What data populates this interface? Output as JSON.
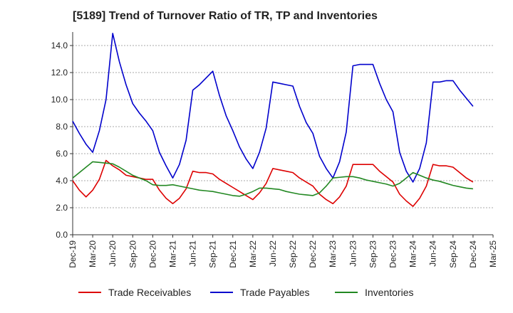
{
  "chart_data": {
    "type": "line",
    "title": "[5189]  Trend of Turnover Ratio of TR, TP and Inventories",
    "xlabel": "",
    "ylabel": "",
    "ylim": [
      0,
      15
    ],
    "yticks": [
      "0.0",
      "2.0",
      "4.0",
      "6.0",
      "8.0",
      "10.0",
      "12.0",
      "14.0"
    ],
    "ytick_values": [
      0,
      2,
      4,
      6,
      8,
      10,
      12,
      14
    ],
    "xtick_labels": [
      "Dec-19",
      "Mar-20",
      "Jun-20",
      "Sep-20",
      "Dec-20",
      "Mar-21",
      "Jun-21",
      "Sep-21",
      "Dec-21",
      "Mar-22",
      "Jun-22",
      "Sep-22",
      "Dec-22",
      "Mar-23",
      "Jun-23",
      "Sep-23",
      "Dec-23",
      "Mar-24",
      "Jun-24",
      "Sep-24",
      "Dec-24",
      "Mar-25"
    ],
    "x": [
      "Dec-19",
      "Jan-20",
      "Feb-20",
      "Mar-20",
      "Apr-20",
      "May-20",
      "Jun-20",
      "Jul-20",
      "Aug-20",
      "Sep-20",
      "Oct-20",
      "Nov-20",
      "Dec-20",
      "Jan-21",
      "Feb-21",
      "Mar-21",
      "Apr-21",
      "May-21",
      "Jun-21",
      "Jul-21",
      "Aug-21",
      "Sep-21",
      "Oct-21",
      "Nov-21",
      "Dec-21",
      "Jan-22",
      "Feb-22",
      "Mar-22",
      "Apr-22",
      "May-22",
      "Jun-22",
      "Jul-22",
      "Aug-22",
      "Sep-22",
      "Oct-22",
      "Nov-22",
      "Dec-22",
      "Jan-23",
      "Feb-23",
      "Mar-23",
      "Apr-23",
      "May-23",
      "Jun-23",
      "Jul-23",
      "Aug-23",
      "Sep-23",
      "Oct-23",
      "Nov-23",
      "Dec-23",
      "Jan-24",
      "Feb-24",
      "Mar-24",
      "Apr-24",
      "May-24",
      "Jun-24",
      "Jul-24",
      "Aug-24",
      "Sep-24",
      "Oct-24",
      "Nov-24",
      "Dec-24",
      "Jan-25",
      "Feb-25",
      "Mar-25"
    ],
    "series": [
      {
        "name": "Trade Receivables",
        "color": "#dd0000",
        "values": [
          4.0,
          3.3,
          2.8,
          3.3,
          4.1,
          5.5,
          5.1,
          4.8,
          4.4,
          4.3,
          4.2,
          4.1,
          4.1,
          3.3,
          2.7,
          2.3,
          2.7,
          3.4,
          4.7,
          4.6,
          4.6,
          4.5,
          4.1,
          3.8,
          3.5,
          3.2,
          2.9,
          2.6,
          3.1,
          3.8,
          4.9,
          4.8,
          4.7,
          4.6,
          4.2,
          3.9,
          3.6,
          3.0,
          2.6,
          2.3,
          2.8,
          3.6,
          5.2,
          5.2,
          5.2,
          5.2,
          4.7,
          4.3,
          3.9,
          3.0,
          2.5,
          2.1,
          2.7,
          3.6,
          5.2,
          5.1,
          5.1,
          5.0,
          4.6,
          4.2,
          3.9,
          null,
          null,
          null
        ]
      },
      {
        "name": "Trade Payables",
        "color": "#0000cc",
        "values": [
          8.4,
          7.5,
          6.7,
          6.1,
          7.7,
          10.0,
          14.9,
          12.8,
          11.1,
          9.7,
          9.0,
          8.4,
          7.7,
          6.1,
          5.1,
          4.2,
          5.2,
          7.0,
          10.7,
          11.1,
          11.6,
          12.1,
          10.3,
          8.8,
          7.7,
          6.5,
          5.6,
          4.9,
          6.1,
          7.9,
          11.3,
          11.2,
          11.1,
          11.0,
          9.5,
          8.3,
          7.5,
          5.8,
          4.9,
          4.2,
          5.4,
          7.6,
          12.5,
          12.6,
          12.6,
          12.6,
          11.2,
          10.0,
          9.1,
          6.1,
          4.7,
          3.9,
          4.9,
          6.8,
          11.3,
          11.3,
          11.4,
          11.4,
          10.7,
          10.1,
          9.5,
          null,
          null,
          null
        ]
      },
      {
        "name": "Inventories",
        "color": "#228822",
        "values": [
          4.2,
          4.6,
          5.0,
          5.4,
          5.35,
          5.3,
          5.25,
          5.0,
          4.7,
          4.4,
          4.2,
          4.0,
          3.7,
          3.65,
          3.65,
          3.7,
          3.6,
          3.5,
          3.4,
          3.3,
          3.25,
          3.2,
          3.1,
          3.0,
          2.9,
          2.85,
          3.0,
          3.2,
          3.45,
          3.45,
          3.4,
          3.35,
          3.2,
          3.1,
          3.0,
          2.95,
          2.9,
          3.1,
          3.6,
          4.2,
          4.25,
          4.3,
          4.3,
          4.2,
          4.05,
          3.95,
          3.85,
          3.75,
          3.6,
          3.8,
          4.2,
          4.6,
          4.4,
          4.2,
          4.05,
          3.95,
          3.8,
          3.65,
          3.55,
          3.45,
          3.4,
          null,
          null,
          null
        ]
      }
    ],
    "grid": true,
    "legend": "bottom"
  }
}
